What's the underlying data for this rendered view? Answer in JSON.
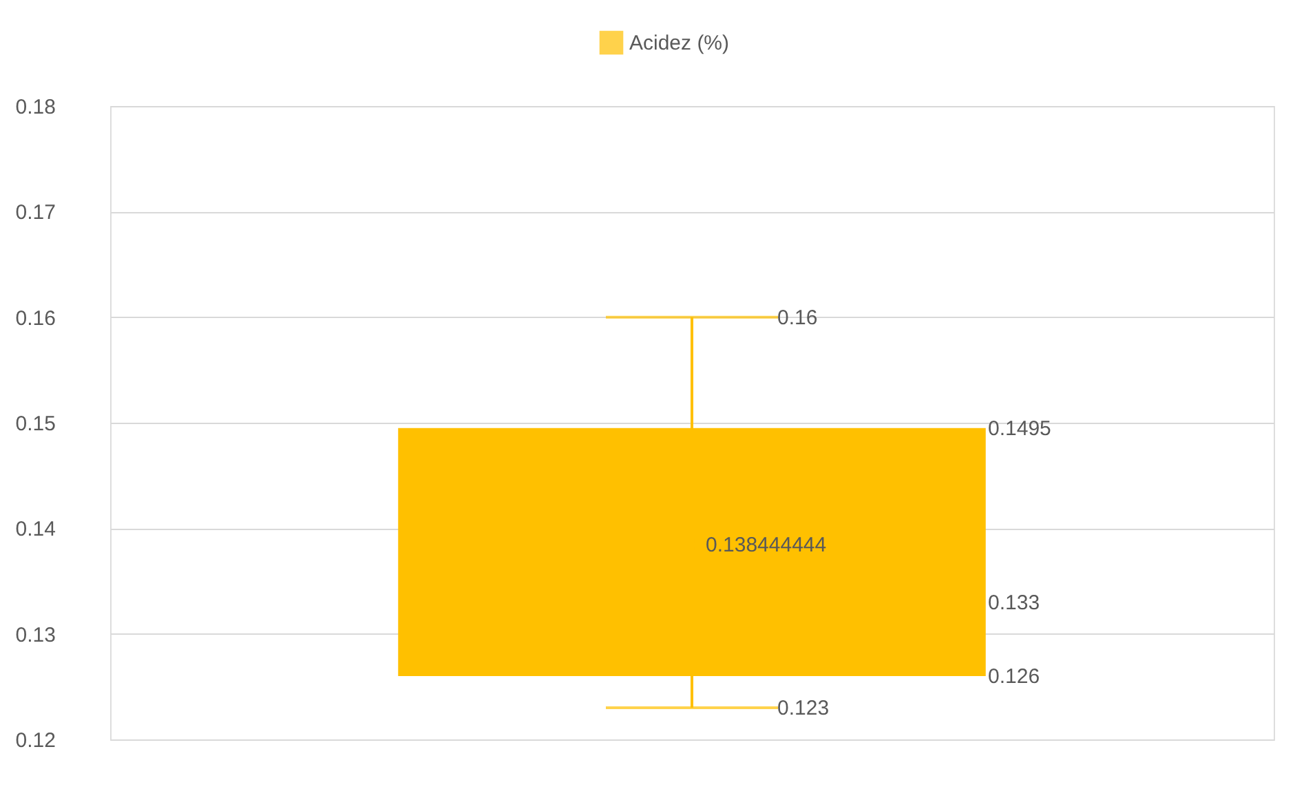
{
  "chart_data": {
    "type": "box",
    "categories": [
      null
    ],
    "series": [
      {
        "name": "Acidez (%)",
        "color": "#ffc000",
        "boxes": [
          {
            "low": 0.123,
            "q1": 0.126,
            "median": 0.133,
            "q3": 0.1495,
            "high": 0.16,
            "mean": 0.138444444
          }
        ]
      }
    ],
    "annotations": [
      "0.16",
      "0.1495",
      "0.138444444",
      "0.133",
      "0.126",
      "0.123"
    ],
    "ylim": [
      0.12,
      0.18
    ],
    "yticks": [
      0.12,
      0.13,
      0.14,
      0.15,
      0.16,
      0.17,
      0.18
    ],
    "grid": "y",
    "legend": "top"
  }
}
